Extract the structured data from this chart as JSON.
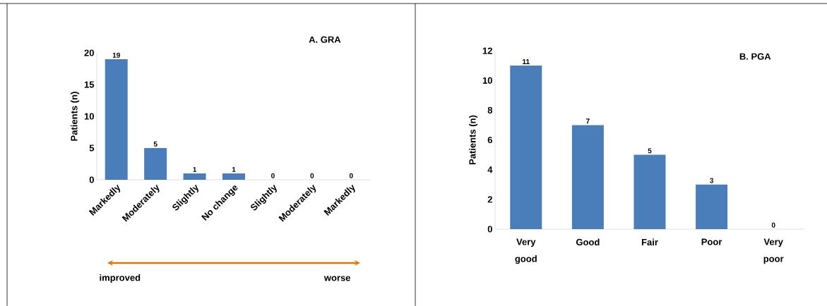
{
  "chart_data": [
    {
      "type": "bar",
      "title": "A. GRA",
      "ylabel": "Patients (n)",
      "categories": [
        "Markedly",
        "Moderately",
        "Slightly",
        "No change",
        "Slightly",
        "Moderately",
        "Markedly"
      ],
      "values": [
        19,
        5,
        1,
        1,
        0,
        0,
        0
      ],
      "color": "#4a7ebb",
      "ylim": [
        0,
        20
      ],
      "yticks": [
        0,
        5,
        10,
        15,
        20
      ],
      "data_labels": true,
      "annotations": [
        "improved",
        "worse"
      ]
    },
    {
      "type": "bar",
      "title": "B. PGA",
      "ylabel": "Patients (n)",
      "categories": [
        "Very good",
        "Good",
        "Fair",
        "Poor",
        "Very poor"
      ],
      "values": [
        11,
        7,
        5,
        3,
        0
      ],
      "color": "#4a7ebb",
      "ylim": [
        0,
        12
      ],
      "yticks": [
        0,
        2,
        4,
        6,
        8,
        10,
        12
      ],
      "data_labels": true
    }
  ]
}
